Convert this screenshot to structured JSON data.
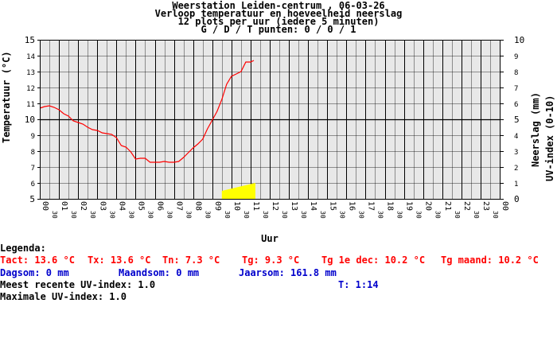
{
  "header": {
    "line1": "Weerstation Leiden-centrum , 06-03-26",
    "line2": "Verloop temperatuur en hoeveelheid neerslag",
    "line3": "12 plots per uur (iedere 5 minuten)",
    "line4": "G / D / T punten: 0 / 0 / 1"
  },
  "chart_data": {
    "type": "line",
    "title": "Weerstation Leiden-centrum , 06-03-26",
    "xlabel": "Uur",
    "ylabel_left": "Temperatuur (°C)",
    "ylabel_right_1": "Neerslag (mm)",
    "ylabel_right_2": "UV-index (0-10)",
    "ylim_left": [
      5,
      15
    ],
    "ylim_right": [
      0,
      10
    ],
    "yticks_left": [
      "15",
      "14",
      "13",
      "12",
      "11",
      "10",
      "9",
      "8",
      "7",
      "6",
      "5"
    ],
    "yticks_right": [
      "10",
      "9",
      "8",
      "7",
      "6",
      "5",
      "4",
      "3",
      "2",
      "1",
      "0"
    ],
    "xlim": [
      0,
      24
    ],
    "hour_labels": [
      "00",
      "01",
      "02",
      "03",
      "04",
      "05",
      "06",
      "07",
      "08",
      "09",
      "10",
      "11",
      "12",
      "13",
      "14",
      "15",
      "16",
      "17",
      "18",
      "19",
      "20",
      "21",
      "22",
      "23",
      "00"
    ],
    "half_label": "30",
    "grid": true,
    "reference_line_temp": 10,
    "colors": {
      "temperature": "#ff0000",
      "uv": "#ffff00",
      "grid": "#000000",
      "background": "#e8e8e8"
    },
    "series": [
      {
        "name": "Temperatuur",
        "unit": "°C",
        "x": [
          0.0,
          0.25,
          0.5,
          0.75,
          1.0,
          1.25,
          1.5,
          1.75,
          2.0,
          2.25,
          2.5,
          2.75,
          3.0,
          3.25,
          3.5,
          3.75,
          4.0,
          4.25,
          4.5,
          4.75,
          5.0,
          5.25,
          5.5,
          5.75,
          6.0,
          6.25,
          6.5,
          6.75,
          7.0,
          7.25,
          7.5,
          7.75,
          8.0,
          8.25,
          8.5,
          8.75,
          9.0,
          9.25,
          9.5,
          9.75,
          10.0,
          10.25,
          10.5,
          10.75,
          11.0,
          11.17
        ],
        "y": [
          10.7,
          10.8,
          10.85,
          10.75,
          10.6,
          10.35,
          10.2,
          9.9,
          9.8,
          9.7,
          9.5,
          9.35,
          9.3,
          9.15,
          9.1,
          9.05,
          8.85,
          8.35,
          8.25,
          7.95,
          7.5,
          7.55,
          7.55,
          7.3,
          7.3,
          7.3,
          7.35,
          7.3,
          7.3,
          7.35,
          7.6,
          7.9,
          8.2,
          8.45,
          8.75,
          9.4,
          9.95,
          10.5,
          11.25,
          12.2,
          12.7,
          12.85,
          13.0,
          13.6,
          13.6,
          13.7
        ]
      },
      {
        "name": "UV-index",
        "axis": "right",
        "x": [
          9.5,
          11.25
        ],
        "y": [
          0.5,
          1.0
        ]
      }
    ]
  },
  "legend": {
    "title": "Legenda:",
    "tact": "Tact: 13.6 °C",
    "tx": "Tx: 13.6 °C",
    "tn": "Tn: 7.3 °C",
    "tg": "Tg: 9.3 °C",
    "tg_dec": "Tg 1e dec: 10.2 °C",
    "tg_maand": "Tg maand: 10.2 °C",
    "dagsom": "Dagsom: 0 mm",
    "maandsom": "Maandsom: 0 mm",
    "jaarsom": "Jaarsom: 161.8 mm",
    "uv_recent": "Meest recente UV-index: 1.0",
    "uv_time": "T: 1:14",
    "uv_max": "Maximale UV-index: 1.0"
  }
}
